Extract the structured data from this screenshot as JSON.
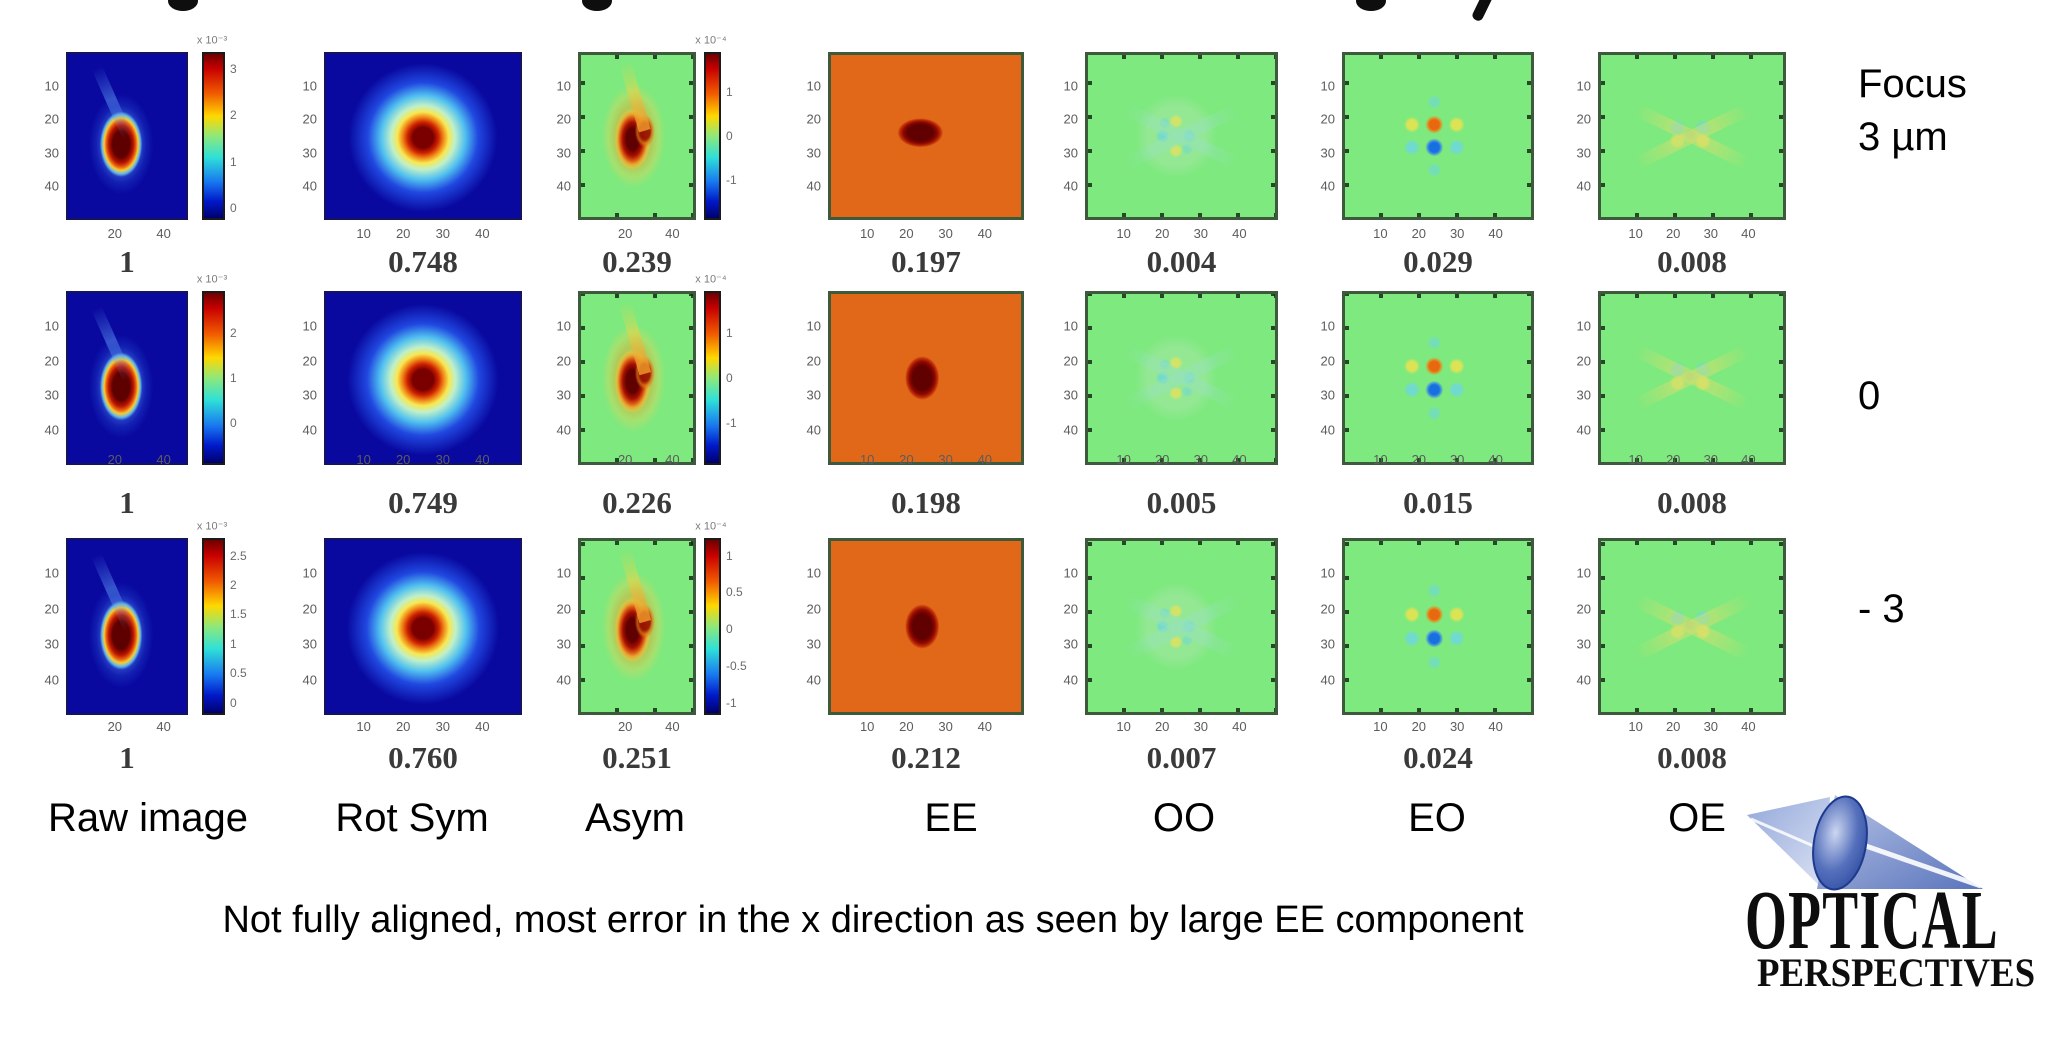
{
  "slide": {
    "caption": "Not fully aligned, most error in the x direction as seen by large EE component",
    "columns": [
      "Raw image",
      "Rot Sym",
      "Asym",
      "EE",
      "OO",
      "EO",
      "OE"
    ],
    "row_labels": [
      [
        "Focus",
        "3 µm"
      ],
      [
        "0"
      ],
      [
        "- 3"
      ]
    ],
    "logo": {
      "line1": "OPTICAL",
      "line2": "PERSPECTIVES"
    }
  },
  "axis": {
    "y_ticks": [
      "10",
      "20",
      "30",
      "40"
    ],
    "x_wide": [
      "10",
      "20",
      "30",
      "40"
    ],
    "x_narrow": [
      "20",
      "40"
    ]
  },
  "grid": {
    "rows": [
      {
        "label": "Focus 3 µm",
        "plots": [
          {
            "col": "raw-image",
            "bg": "blue",
            "pattern": "raw",
            "xticks": "narrow",
            "value": "1",
            "colorbar": {
              "header": "x 10⁻³",
              "ticks": [
                "3",
                "2",
                "1",
                "0"
              ]
            }
          },
          {
            "col": "rot-sym",
            "bg": "blue",
            "pattern": "rotsym",
            "xticks": "wide",
            "value": "0.748"
          },
          {
            "col": "asym",
            "bg": "green",
            "pattern": "asym",
            "xticks": "narrow",
            "value": "0.239",
            "colorbar": {
              "header": "x 10⁻⁴",
              "ticks": [
                "1",
                "0",
                "-1"
              ]
            }
          },
          {
            "col": "ee",
            "bg": "green",
            "pattern": "ee-h",
            "xticks": "wide",
            "value": "0.197"
          },
          {
            "col": "oo",
            "bg": "green",
            "pattern": "oo",
            "xticks": "wide",
            "value": "0.004"
          },
          {
            "col": "eo",
            "bg": "green",
            "pattern": "eo",
            "xticks": "wide",
            "value": "0.029"
          },
          {
            "col": "oe",
            "bg": "green",
            "pattern": "oe",
            "xticks": "wide",
            "value": "0.008"
          }
        ]
      },
      {
        "label": "0",
        "plots": [
          {
            "col": "raw-image",
            "bg": "blue",
            "pattern": "raw",
            "xticks": "narrow",
            "value": "1",
            "colorbar": {
              "header": "x 10⁻³",
              "ticks": [
                "2",
                "1",
                "0"
              ]
            }
          },
          {
            "col": "rot-sym",
            "bg": "blue",
            "pattern": "rotsym",
            "xticks": "wide",
            "value": "0.749"
          },
          {
            "col": "asym",
            "bg": "green",
            "pattern": "asym",
            "xticks": "narrow",
            "value": "0.226",
            "colorbar": {
              "header": "x 10⁻⁴",
              "ticks": [
                "1",
                "0",
                "-1"
              ]
            }
          },
          {
            "col": "ee",
            "bg": "green",
            "pattern": "ee-v",
            "xticks": "wide",
            "value": "0.198"
          },
          {
            "col": "oo",
            "bg": "green",
            "pattern": "oo",
            "xticks": "wide",
            "value": "0.005"
          },
          {
            "col": "eo",
            "bg": "green",
            "pattern": "eo",
            "xticks": "wide",
            "value": "0.015"
          },
          {
            "col": "oe",
            "bg": "green",
            "pattern": "oe",
            "xticks": "wide",
            "value": "0.008"
          }
        ]
      },
      {
        "label": "- 3",
        "plots": [
          {
            "col": "raw-image",
            "bg": "blue",
            "pattern": "raw",
            "xticks": "narrow",
            "value": "1",
            "colorbar": {
              "header": "x 10⁻³",
              "ticks": [
                "2.5",
                "2",
                "1.5",
                "1",
                "0.5",
                "0"
              ]
            }
          },
          {
            "col": "rot-sym",
            "bg": "blue",
            "pattern": "rotsym",
            "xticks": "wide",
            "value": "0.760"
          },
          {
            "col": "asym",
            "bg": "green",
            "pattern": "asym",
            "xticks": "narrow",
            "value": "0.251",
            "colorbar": {
              "header": "x 10⁻⁴",
              "ticks": [
                "1",
                "0.5",
                "0",
                "-0.5",
                "-1"
              ]
            }
          },
          {
            "col": "ee",
            "bg": "green",
            "pattern": "ee-v",
            "xticks": "wide",
            "value": "0.212"
          },
          {
            "col": "oo",
            "bg": "green",
            "pattern": "oo",
            "xticks": "wide",
            "value": "0.007"
          },
          {
            "col": "eo",
            "bg": "green",
            "pattern": "eo",
            "xticks": "wide",
            "value": "0.024"
          },
          {
            "col": "oe",
            "bg": "green",
            "pattern": "oe",
            "xticks": "wide",
            "value": "0.008"
          }
        ]
      }
    ]
  },
  "chart_data": {
    "type": "heatmap",
    "description": "3x7 grid of 48x48 jet-colormap heatmaps showing a point-spread-function image decomposed into symmetry components (Raw image, Rot Sym, Asym, EE, OO, EO, OE) at three focus positions; the number under each panel is the fractional energy of that component.",
    "columns": [
      "Raw image",
      "Rot Sym",
      "Asym",
      "EE",
      "OO",
      "EO",
      "OE"
    ],
    "rows": [
      "Focus 3 µm",
      "0",
      "- 3"
    ],
    "series": [
      {
        "name": "Focus 3 µm",
        "values": [
          1,
          0.748,
          0.239,
          0.197,
          0.004,
          0.029,
          0.008
        ]
      },
      {
        "name": "0",
        "values": [
          1,
          0.749,
          0.226,
          0.198,
          0.005,
          0.015,
          0.008
        ]
      },
      {
        "name": "- 3",
        "values": [
          1,
          0.76,
          0.251,
          0.212,
          0.007,
          0.024,
          0.008
        ]
      }
    ],
    "axes": {
      "x_range": [
        1,
        48
      ],
      "y_range": [
        1,
        48
      ],
      "ticks": [
        10,
        20,
        30,
        40
      ]
    },
    "colormap": "jet",
    "legend_position": "none",
    "caption": "Not fully aligned, most error in the x direction as seen by large EE component"
  }
}
